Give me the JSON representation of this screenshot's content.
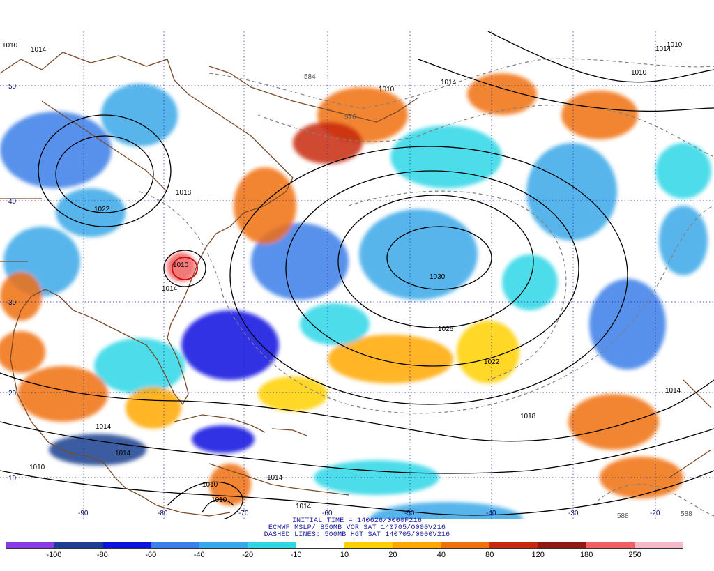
{
  "title_lines": [
    "INITIAL TIME = 140626/0000F216",
    "ECMWF MSLP/ 850MB VOR SAT 140705/0000V216",
    "DASHED LINES: 500MB HGT SAT 140705/0000V216"
  ],
  "isobar_labels": [
    "1010",
    "1014",
    "1010",
    "1014",
    "1010",
    "1010",
    "1018",
    "1022",
    "1010",
    "1014",
    "1030",
    "1026",
    "1022",
    "1018",
    "1014",
    "1014",
    "1014",
    "1010",
    "1010",
    "1010",
    "1014",
    "1014",
    "1014"
  ],
  "height_labels": [
    "584",
    "576",
    "588",
    "588"
  ],
  "lon_labels": [
    "-90",
    "-80",
    "-70",
    "-60",
    "-50",
    "-40",
    "-30",
    "-20"
  ],
  "lat_labels": [
    "50",
    "40",
    "30",
    "20",
    "10"
  ],
  "colorbar": {
    "tick_labels": [
      "-100",
      "-80",
      "-60",
      "-40",
      "-20",
      "-10",
      "10",
      "20",
      "40",
      "80",
      "120",
      "180",
      "250"
    ],
    "colors": [
      "#8a3be6",
      "#1a3f8f",
      "#0a12e0",
      "#3a7ee8",
      "#38a8e8",
      "#2ed6e6",
      "#ffffff",
      "#ffd000",
      "#ffa800",
      "#f07010",
      "#c82810",
      "#8e1a10",
      "#f06060",
      "#f8b8c8"
    ]
  },
  "palette": {
    "land_outline": "#7a4a2a",
    "isobar": "#000000",
    "height": "#808080",
    "grid": "#1a1aa0"
  }
}
